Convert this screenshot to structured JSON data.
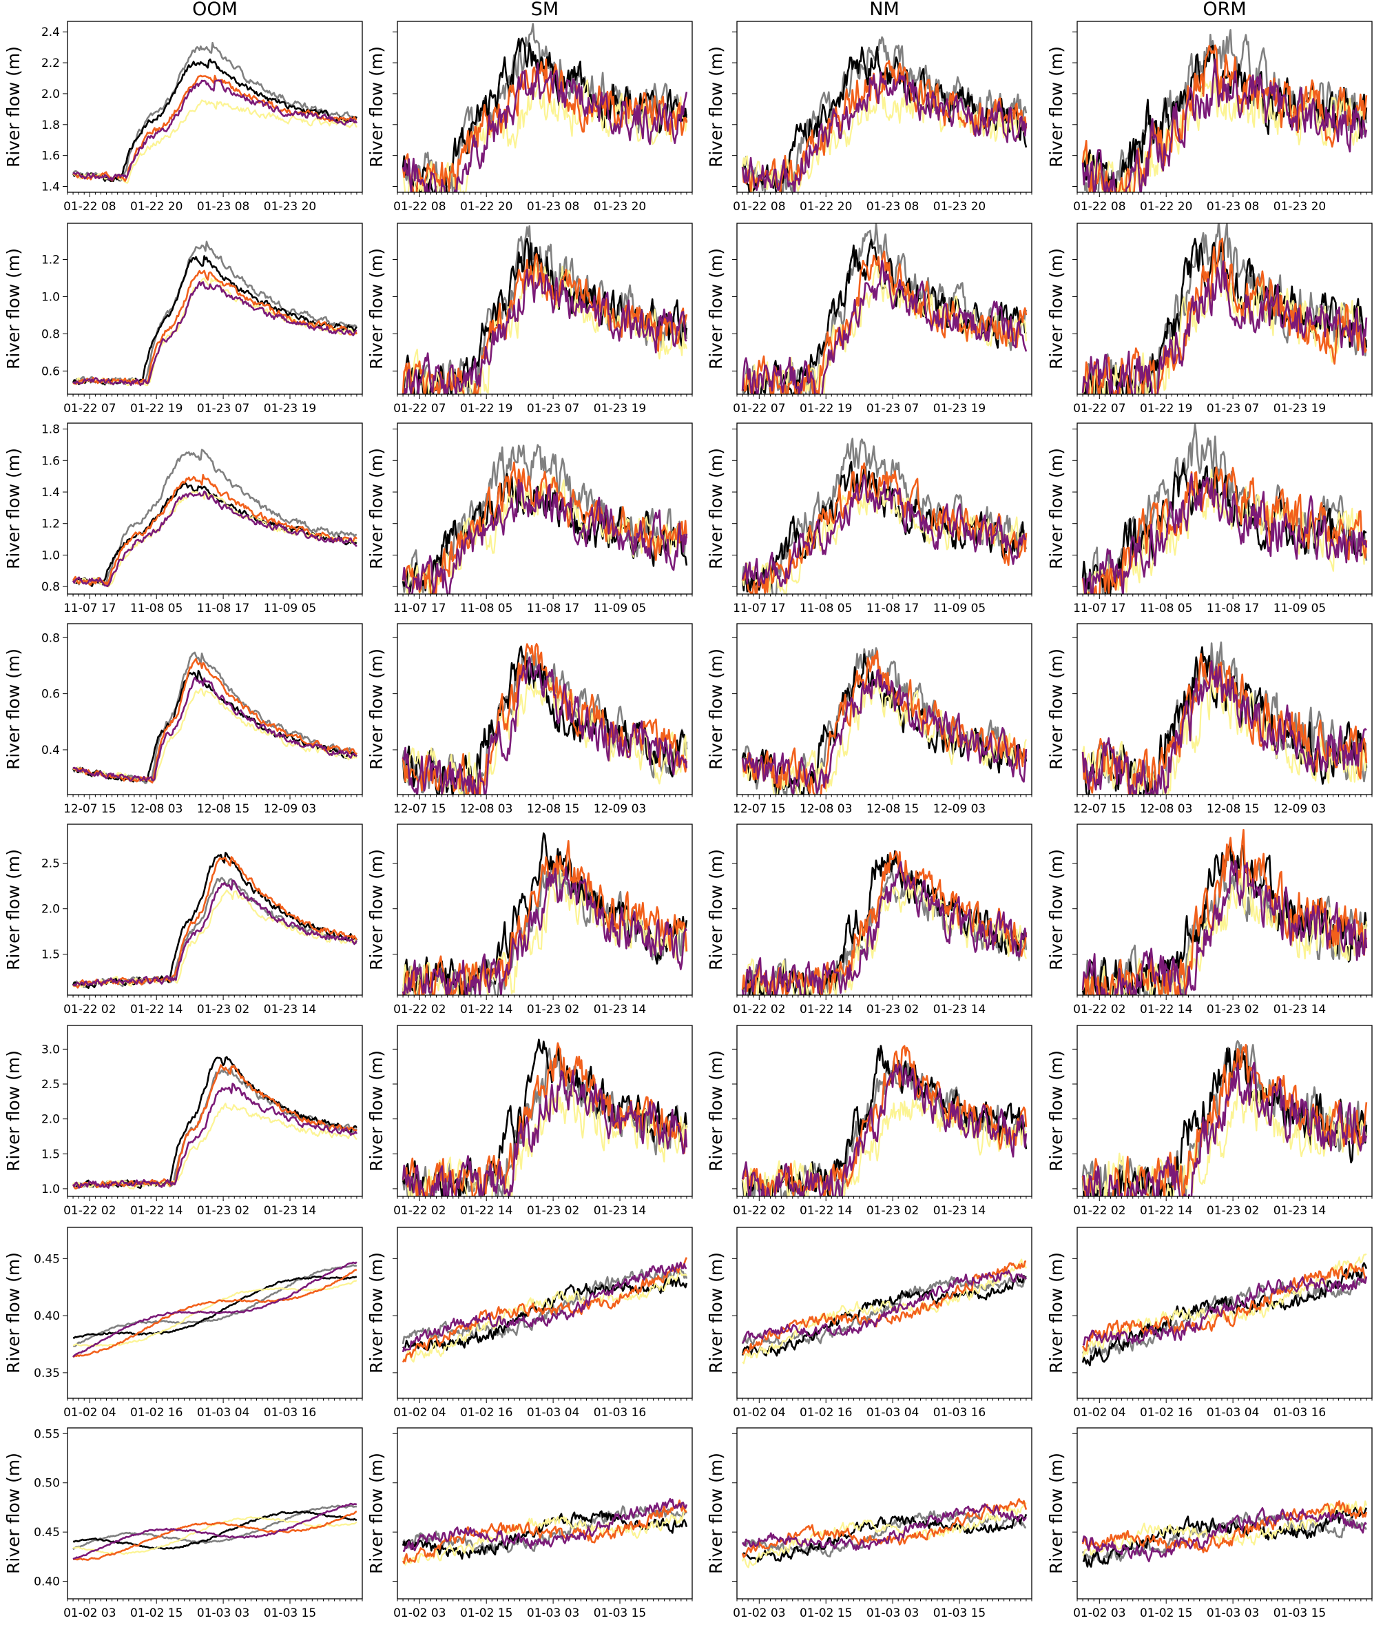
{
  "columns": [
    "OOM",
    "SM",
    "NM",
    "ORM"
  ],
  "y_axis_label": "River flow (m)",
  "series_colors": {
    "black": "#000000",
    "gray": "#808080",
    "purple": "#7b1a78",
    "orange": "#f2601b",
    "yellow": "#fcf494"
  },
  "chart_data": [
    {
      "type": "line",
      "row": 1,
      "xticklabels": [
        "01-22 08",
        "01-22 20",
        "01-23 08",
        "01-23 20"
      ],
      "xtick_hours": [
        8,
        20,
        32,
        44
      ],
      "x_range_hours": [
        4,
        57
      ],
      "ylim": [
        1.38,
        2.45
      ],
      "yticks": [
        1.4,
        1.6,
        1.8,
        2.0,
        2.2,
        2.4
      ],
      "ytick_labels": [
        "1.4",
        "1.6",
        "1.8",
        "2.0",
        "2.2",
        "2.4"
      ],
      "start": 1.48,
      "base": 1.45,
      "rise_hour": 14,
      "peak_hour": 30,
      "end": 1.78,
      "p1": 2.32,
      "p2": 2.22,
      "p3": 1.95,
      "p4": 2.12,
      "p5": 2.08
    },
    {
      "type": "line",
      "row": 2,
      "xticklabels": [
        "01-22 07",
        "01-22 19",
        "01-23 07",
        "01-23 19"
      ],
      "xtick_hours": [
        7,
        19,
        31,
        43
      ],
      "x_range_hours": [
        3,
        56
      ],
      "ylim": [
        0.49,
        1.38
      ],
      "yticks": [
        0.6,
        0.8,
        1.0,
        1.2
      ],
      "ytick_labels": [
        "0.6",
        "0.8",
        "1.0",
        "1.2"
      ],
      "start": 0.55,
      "base": 0.54,
      "rise_hour": 17,
      "peak_hour": 28,
      "end": 0.77,
      "p1": 1.3,
      "p2": 1.22,
      "p3": 1.1,
      "p4": 1.15,
      "p5": 1.08
    },
    {
      "type": "line",
      "row": 3,
      "xticklabels": [
        "11-07 17",
        "11-08 05",
        "11-08 17",
        "11-09 05"
      ],
      "xtick_hours": [
        17,
        29,
        41,
        53
      ],
      "x_range_hours": [
        13,
        66
      ],
      "ylim": [
        0.77,
        1.82
      ],
      "yticks": [
        0.8,
        1.0,
        1.2,
        1.4,
        1.6,
        1.8
      ],
      "ytick_labels": [
        "0.8",
        "1.0",
        "1.2",
        "1.4",
        "1.6",
        "1.8"
      ],
      "start": 0.84,
      "base": 0.83,
      "rise_hour": 20,
      "peak_hour": 37,
      "end": 1.04,
      "p1": 1.66,
      "p2": 1.45,
      "p3": 1.4,
      "p4": 1.5,
      "p5": 1.4
    },
    {
      "type": "line",
      "row": 4,
      "xticklabels": [
        "12-07 15",
        "12-08 03",
        "12-08 15",
        "12-09 03"
      ],
      "xtick_hours": [
        15,
        27,
        39,
        51
      ],
      "x_range_hours": [
        11,
        64
      ],
      "ylim": [
        0.25,
        0.84
      ],
      "yticks": [
        0.4,
        0.6,
        0.8
      ],
      "ytick_labels": [
        "0.4",
        "0.6",
        "0.8"
      ],
      "start": 0.33,
      "base": 0.29,
      "rise_hour": 26,
      "peak_hour": 35,
      "end": 0.34,
      "p1": 0.75,
      "p2": 0.68,
      "p3": 0.62,
      "p4": 0.72,
      "p5": 0.66
    },
    {
      "type": "line",
      "row": 5,
      "xticklabels": [
        "01-22 02",
        "01-22 14",
        "01-23 02",
        "01-23 14"
      ],
      "xtick_hours": [
        2,
        14,
        26,
        38
      ],
      "x_range_hours": [
        -2,
        51
      ],
      "ylim": [
        1.08,
        2.9
      ],
      "yticks": [
        1.5,
        2.0,
        2.5
      ],
      "ytick_labels": [
        "1.5",
        "2.0",
        "2.5"
      ],
      "start": 1.17,
      "base": 1.22,
      "rise_hour": 17,
      "peak_hour": 27,
      "end": 1.55,
      "p1": 2.35,
      "p2": 2.6,
      "p3": 2.2,
      "p4": 2.6,
      "p5": 2.3
    },
    {
      "type": "line",
      "row": 6,
      "xticklabels": [
        "01-22 02",
        "01-22 14",
        "01-23 02",
        "01-23 14"
      ],
      "xtick_hours": [
        2,
        14,
        26,
        38
      ],
      "x_range_hours": [
        -2,
        51
      ],
      "ylim": [
        0.93,
        3.3
      ],
      "yticks": [
        1.0,
        1.5,
        2.0,
        2.5,
        3.0
      ],
      "ytick_labels": [
        "1.0",
        "1.5",
        "2.0",
        "2.5",
        "3.0"
      ],
      "start": 1.05,
      "base": 1.08,
      "rise_hour": 17,
      "peak_hour": 27,
      "end": 1.7,
      "p1": 2.75,
      "p2": 2.9,
      "p3": 2.2,
      "p4": 2.8,
      "p5": 2.5
    },
    {
      "type": "line",
      "row": 7,
      "xticklabels": [
        "01-02 04",
        "01-02 16",
        "01-03 04",
        "01-03 16"
      ],
      "xtick_hours": [
        4,
        16,
        28,
        40
      ],
      "x_range_hours": [
        0,
        53
      ],
      "ylim": [
        0.33,
        0.475
      ],
      "yticks": [
        0.35,
        0.4,
        0.45
      ],
      "ytick_labels": [
        "0.35",
        "0.40",
        "0.45"
      ],
      "start": 0.37,
      "end": 0.44
    },
    {
      "type": "line",
      "row": 8,
      "xticklabels": [
        "01-02 03",
        "01-02 15",
        "01-03 03",
        "01-03 15"
      ],
      "xtick_hours": [
        3,
        15,
        27,
        39
      ],
      "x_range_hours": [
        -1,
        52
      ],
      "ylim": [
        0.385,
        0.553
      ],
      "yticks": [
        0.4,
        0.45,
        0.5,
        0.55
      ],
      "ytick_labels": [
        "0.40",
        "0.45",
        "0.50",
        "0.55"
      ],
      "start": 0.43,
      "end": 0.47
    }
  ]
}
